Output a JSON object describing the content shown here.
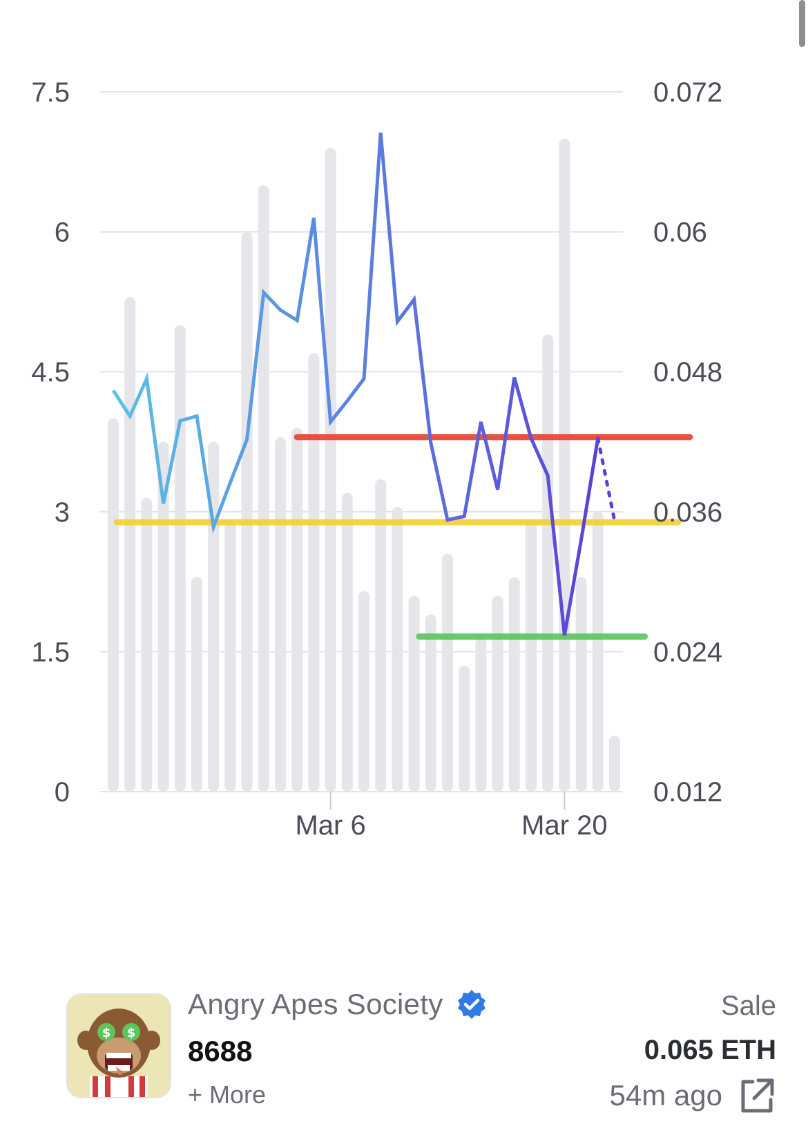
{
  "chart_data": {
    "type": "bar+line",
    "x_ticks": [
      "Mar 6",
      "Mar 20"
    ],
    "left_axis": {
      "ticks": [
        "7.5",
        "6",
        "4.5",
        "3",
        "1.5",
        "0"
      ],
      "ylim": [
        0,
        7.5
      ]
    },
    "right_axis": {
      "ticks": [
        "0.072",
        "0.06",
        "0.048",
        "0.036",
        "0.024",
        "0.012"
      ],
      "ylim": [
        0.012,
        0.072
      ]
    },
    "bars": [
      4.0,
      5.3,
      3.15,
      3.75,
      5.0,
      2.3,
      3.75,
      2.9,
      6.0,
      6.5,
      3.8,
      3.9,
      4.7,
      6.9,
      3.2,
      2.15,
      3.35,
      3.05,
      2.1,
      1.9,
      2.55,
      1.35,
      1.65,
      2.1,
      2.3,
      2.9,
      4.9,
      7.0,
      2.3,
      3.0,
      0.6
    ],
    "line": [
      0.0464,
      0.0442,
      0.0474,
      0.0367,
      0.0438,
      0.0442,
      0.0347,
      0.0385,
      0.0422,
      0.0548,
      0.0533,
      0.0524,
      0.0612,
      0.0437,
      0.0455,
      0.0474,
      0.0685,
      0.0523,
      0.0542,
      0.0419,
      0.0353,
      0.0356,
      0.0437,
      0.0379,
      0.0475,
      0.0423,
      0.0391,
      0.0254,
      0.0336,
      0.0423
    ],
    "projected_last": 0.0352,
    "reference_lines": [
      {
        "name": "red",
        "value": 0.0424,
        "color": "#e8442d"
      },
      {
        "name": "yellow",
        "value": 0.0351,
        "color": "#f5d03a"
      },
      {
        "name": "green",
        "value": 0.0253,
        "color": "#5cc65c"
      }
    ],
    "colors": {
      "bar": "#e6e6ea",
      "line_start": "#5bc3e6",
      "line_end": "#5b3fd8",
      "grid": "#e3e3e6"
    }
  },
  "sale": {
    "collection": "Angry Apes Society",
    "token_id": "8688",
    "more": "+ More",
    "event_type": "Sale",
    "price": "0.065 ETH",
    "time_ago": "54m ago"
  }
}
